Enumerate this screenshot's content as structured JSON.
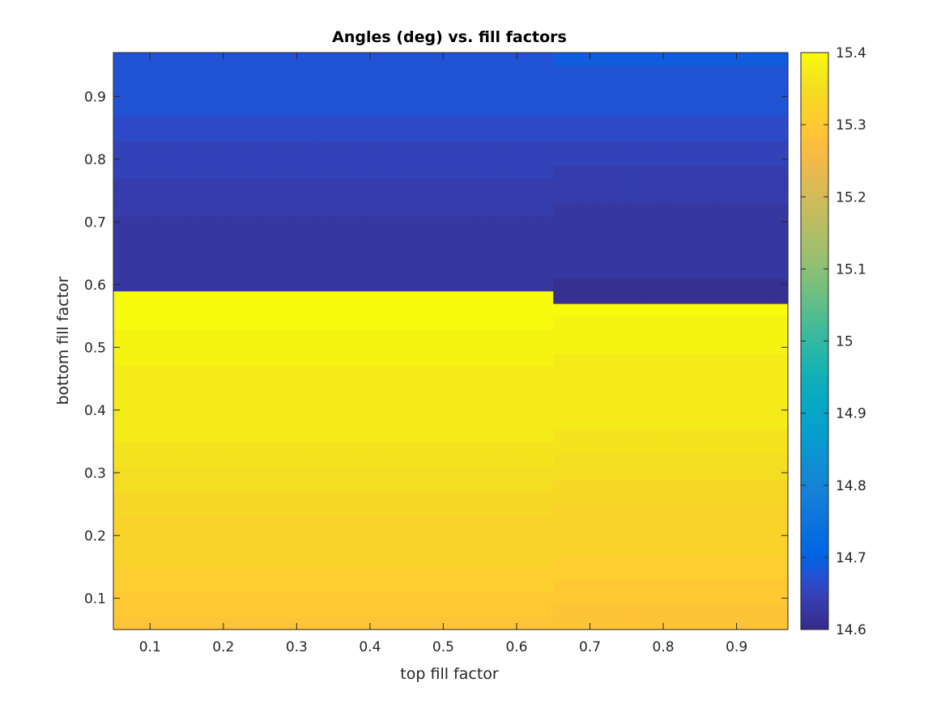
{
  "chart_data": {
    "type": "heatmap",
    "title": "Angles (deg) vs. fill factors",
    "xlabel": "top fill factor",
    "ylabel": "bottom fill factor",
    "xlim": [
      0.05,
      0.97
    ],
    "ylim": [
      0.05,
      0.97
    ],
    "x_ticks": [
      0.1,
      0.2,
      0.3,
      0.4,
      0.5,
      0.6,
      0.7,
      0.8,
      0.9
    ],
    "y_ticks": [
      0.1,
      0.2,
      0.3,
      0.4,
      0.5,
      0.6,
      0.7,
      0.8,
      0.9
    ],
    "grid": false,
    "colormap": "parula",
    "colorbar": {
      "range": [
        14.6,
        15.4
      ],
      "ticks": [
        "14.6",
        "14.7",
        "14.8",
        "14.9",
        "15",
        "15.1",
        "15.2",
        "15.3",
        "15.4"
      ]
    },
    "x_centers": [
      0.06,
      0.08,
      0.1,
      0.12,
      0.14,
      0.16,
      0.18,
      0.2,
      0.22,
      0.24,
      0.26,
      0.28,
      0.3,
      0.32,
      0.34,
      0.36,
      0.38,
      0.4,
      0.42,
      0.44,
      0.46,
      0.48,
      0.5,
      0.52,
      0.54,
      0.56,
      0.58,
      0.6,
      0.62,
      0.64,
      0.66,
      0.68,
      0.7,
      0.72,
      0.74,
      0.76,
      0.78,
      0.8,
      0.82,
      0.84,
      0.86,
      0.88,
      0.9,
      0.92,
      0.94,
      0.96
    ],
    "y_centers": [
      0.06,
      0.08,
      0.1,
      0.12,
      0.14,
      0.16,
      0.18,
      0.2,
      0.22,
      0.24,
      0.26,
      0.28,
      0.3,
      0.32,
      0.34,
      0.36,
      0.38,
      0.4,
      0.42,
      0.44,
      0.46,
      0.48,
      0.5,
      0.52,
      0.54,
      0.56,
      0.58,
      0.6,
      0.62,
      0.64,
      0.66,
      0.68,
      0.7,
      0.72,
      0.74,
      0.76,
      0.78,
      0.8,
      0.82,
      0.84,
      0.86,
      0.88,
      0.9,
      0.92,
      0.94,
      0.96
    ],
    "row_profile": {
      "description": "angle value per y row for low top-fill (x<=0.65) and high top-fill (x>0.65) regions",
      "low_x": [
        15.29,
        15.3,
        15.3,
        15.31,
        15.31,
        15.32,
        15.32,
        15.33,
        15.33,
        15.34,
        15.34,
        15.35,
        15.35,
        15.36,
        15.36,
        15.37,
        15.37,
        15.37,
        15.38,
        15.38,
        15.38,
        15.39,
        15.39,
        15.39,
        15.4,
        15.4,
        15.4,
        14.62,
        14.62,
        14.63,
        14.63,
        14.63,
        14.63,
        14.64,
        14.64,
        14.64,
        14.65,
        14.65,
        14.65,
        14.66,
        14.66,
        14.67,
        14.67,
        14.68,
        14.68,
        14.68
      ],
      "high_x": [
        15.29,
        15.29,
        15.3,
        15.3,
        15.31,
        15.31,
        15.32,
        15.32,
        15.33,
        15.33,
        15.34,
        15.34,
        15.35,
        15.35,
        15.36,
        15.36,
        15.37,
        15.37,
        15.37,
        15.38,
        15.38,
        15.38,
        15.39,
        15.39,
        15.39,
        15.4,
        14.61,
        14.61,
        14.62,
        14.62,
        14.62,
        14.63,
        14.63,
        14.63,
        14.64,
        14.64,
        14.64,
        14.65,
        14.65,
        14.66,
        14.66,
        14.67,
        14.67,
        14.68,
        14.68,
        14.69
      ]
    }
  }
}
